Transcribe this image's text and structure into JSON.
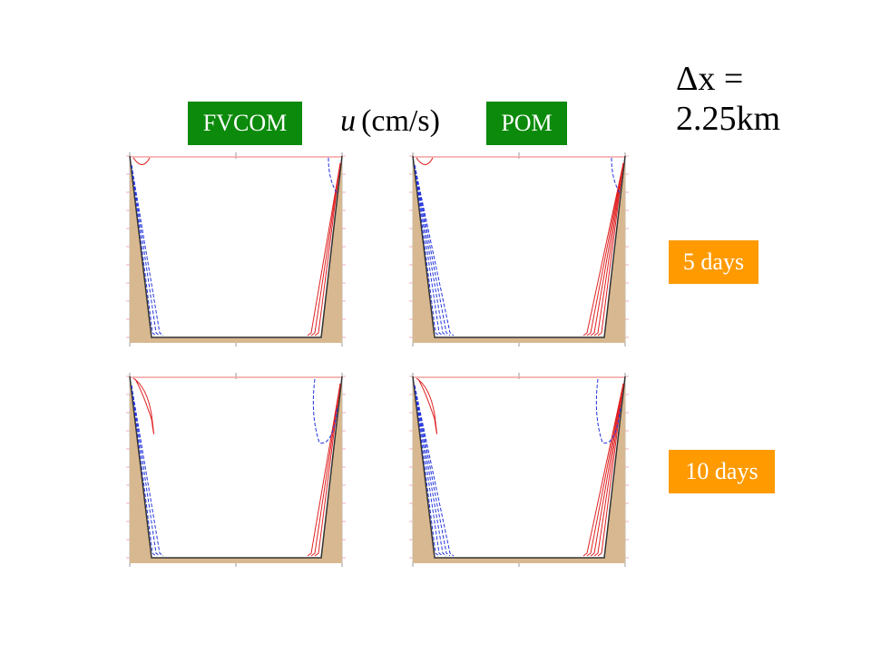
{
  "labels": {
    "fvcom": "FVCOM",
    "u_symbol": "u",
    "u_unit": "(cm/s)",
    "pom": "POM",
    "dx": "Δx = 2.25km",
    "day5": "5 days",
    "day10": "10 days"
  }
}
